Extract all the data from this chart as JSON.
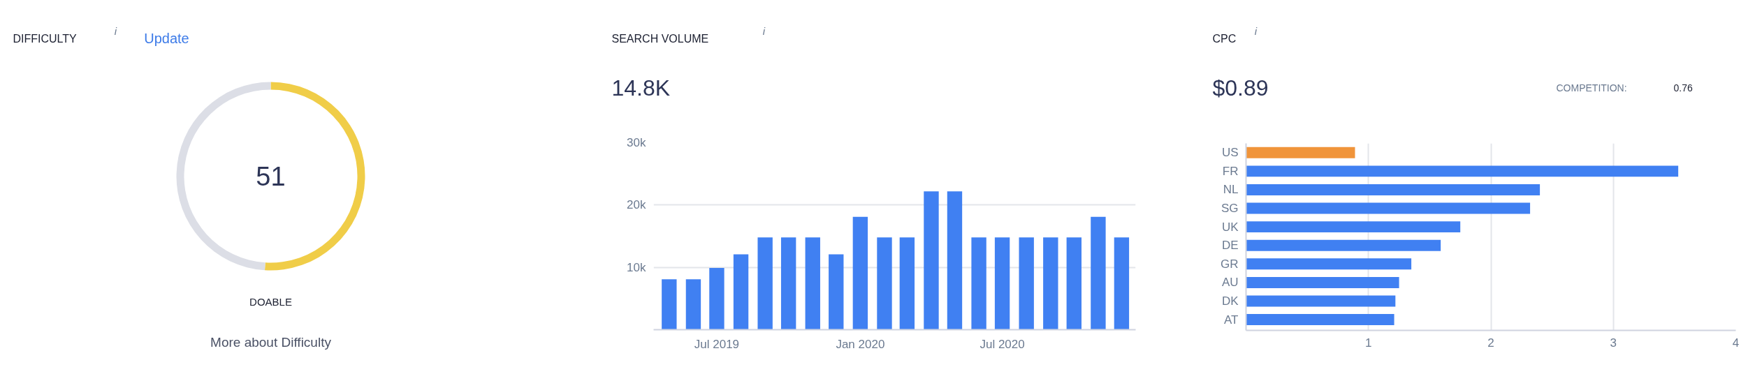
{
  "chart_data": [
    {
      "type": "donut",
      "title": "DIFFICULTY",
      "categories": [
        null,
        null
      ],
      "values": [
        51,
        49
      ],
      "colors": [
        "#f0cd48",
        "#dcdee6"
      ],
      "annotations": [
        "i",
        "Update",
        "51",
        "DOABLE",
        "More about Difficulty"
      ]
    },
    {
      "type": "bar",
      "title": "SEARCH VOLUME",
      "annotations": [
        "i",
        "14.8K"
      ],
      "x": [
        "2019-05",
        "2019-06",
        "2019-07",
        "2019-08",
        "2019-09",
        "2019-10",
        "2019-11",
        "2019-12",
        "2020-01",
        "2020-02",
        "2020-03",
        "2020-04",
        "2020-05",
        "2020-06",
        "2020-07",
        "2020-08",
        "2020-09",
        "2020-10",
        "2020-11",
        "2020-12"
      ],
      "values": [
        8100,
        8100,
        9900,
        12100,
        14800,
        14800,
        14800,
        12100,
        18100,
        14800,
        14800,
        22200,
        22200,
        14800,
        14800,
        14800,
        14800,
        14800,
        18100,
        14800
      ],
      "color": "#4080f2",
      "xlim": [
        "2019-04-11",
        "2020-12-19"
      ],
      "xticks": [
        {
          "value": "2019-07",
          "label": "Jul 2019"
        },
        {
          "value": "2020-01",
          "label": "Jan 2020"
        },
        {
          "value": "2020-07",
          "label": "Jul 2020"
        }
      ],
      "ylim": [
        0,
        30000
      ],
      "yticks": [
        {
          "value": 10000,
          "label": "10k"
        },
        {
          "value": 20000,
          "label": "20k"
        },
        {
          "value": 30000,
          "label": "30k"
        }
      ],
      "grid": "y"
    },
    {
      "type": "bar",
      "orientation": "horizontal",
      "title": "CPC",
      "annotations": [
        "i",
        "$0.89",
        "COMPETITION:",
        "0.76"
      ],
      "categories": [
        "US",
        "FR",
        "NL",
        "SG",
        "UK",
        "DE",
        "GR",
        "AU",
        "DK",
        "AT"
      ],
      "values": [
        0.89,
        3.53,
        2.4,
        2.32,
        1.75,
        1.59,
        1.35,
        1.25,
        1.22,
        1.21
      ],
      "colors": [
        "#f0943a",
        "#4080f2",
        "#4080f2",
        "#4080f2",
        "#4080f2",
        "#4080f2",
        "#4080f2",
        "#4080f2",
        "#4080f2",
        "#4080f2"
      ],
      "xlim": [
        0,
        4
      ],
      "xticks": [
        1,
        2,
        3,
        4
      ],
      "grid": "x"
    }
  ]
}
